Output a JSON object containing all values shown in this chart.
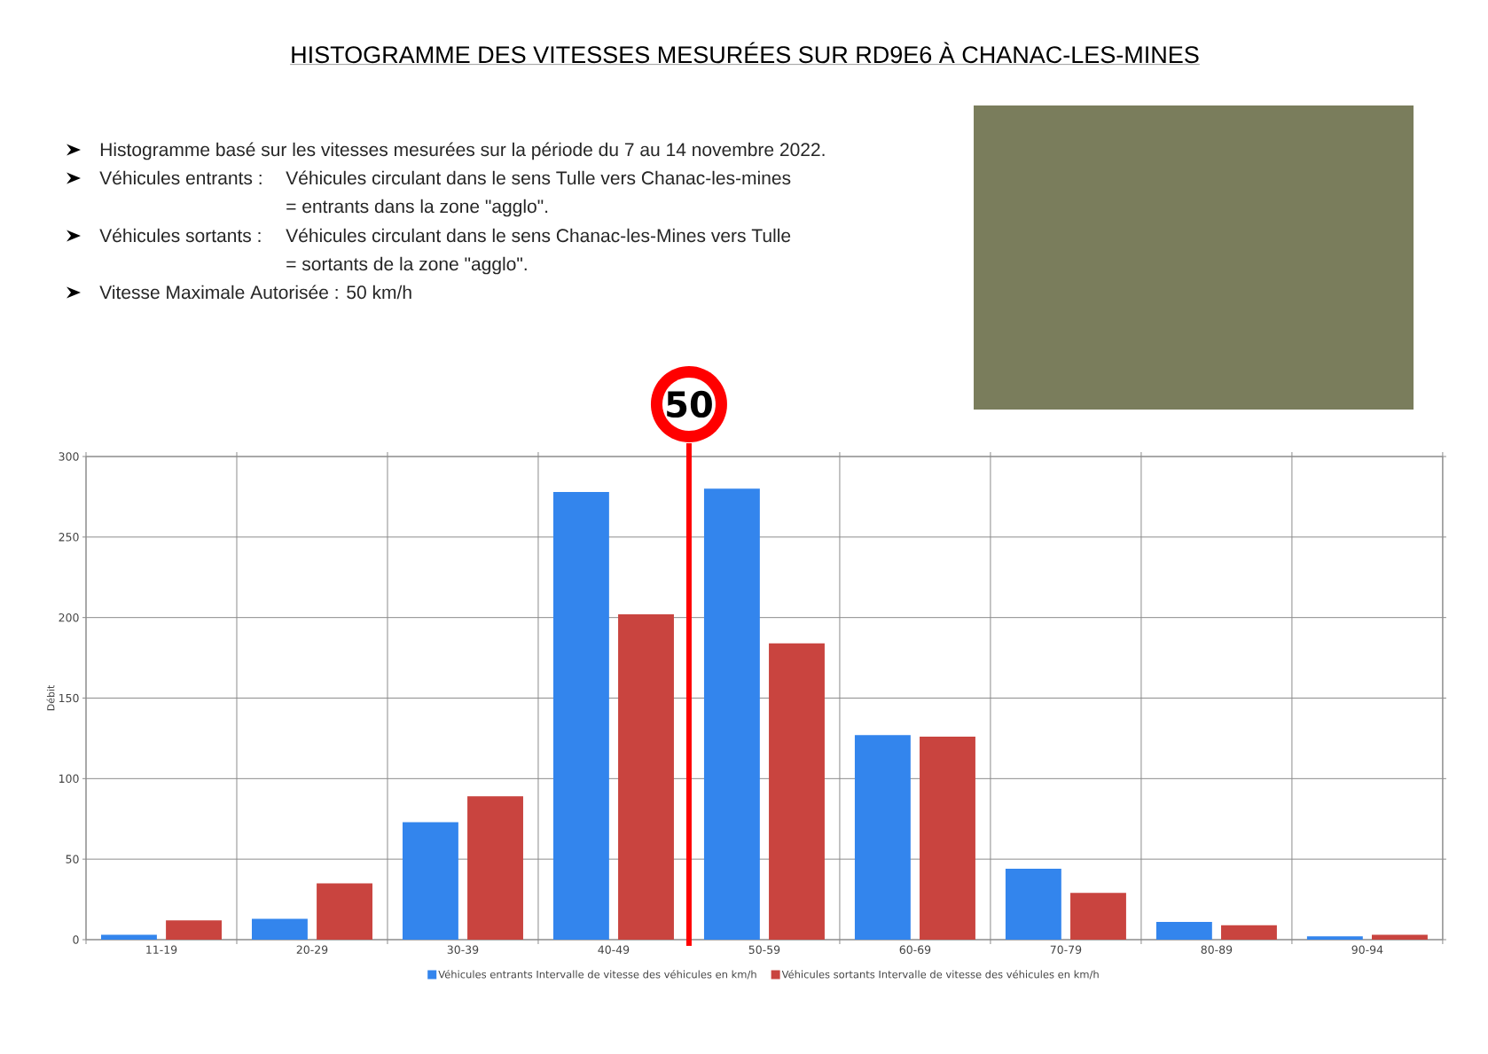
{
  "chart_data": {
    "type": "bar",
    "title": "HISTOGRAMME DES VITESSES MESURÉES SUR RD9E6 À CHANAC-LES-MINES",
    "ylabel": "Débit",
    "categories": [
      "11-19",
      "20-29",
      "30-39",
      "40-49",
      "50-59",
      "60-69",
      "70-79",
      "80-89",
      "90-94"
    ],
    "series": [
      {
        "name": "Véhicules entrants Intervalle de vitesse des véhicules en km/h",
        "color": "#3385ed",
        "values": [
          3,
          13,
          73,
          278,
          280,
          127,
          44,
          11,
          2
        ]
      },
      {
        "name": "Véhicules sortants Intervalle de vitesse des véhicules en km/h",
        "color": "#c9443f",
        "values": [
          12,
          35,
          89,
          202,
          184,
          126,
          29,
          9,
          3
        ]
      }
    ],
    "ylim": [
      0,
      300
    ],
    "yticks": [
      0,
      50,
      100,
      150,
      200,
      250,
      300
    ],
    "grid": true,
    "legend": "bottom",
    "ref_lines": [
      {
        "axis": "x",
        "value": "50-59",
        "label": "50",
        "color": "#ff0000"
      }
    ],
    "annotations": [
      "Histogramme basé sur les vitesses mesurées sur la période du 7 au 14 novembre 2022.",
      "Véhicules entrants :",
      "Véhicules circulant dans le sens Tulle vers Chanac-les-mines",
      "= entrants dans la zone \"agglo\".",
      "Véhicules sortants :",
      "Véhicules circulant dans le sens Chanac-les-Mines vers Tulle",
      "= sortants de la zone \"agglo\".",
      "Vitesse Maximale Autorisée : 50 km/h"
    ]
  }
}
